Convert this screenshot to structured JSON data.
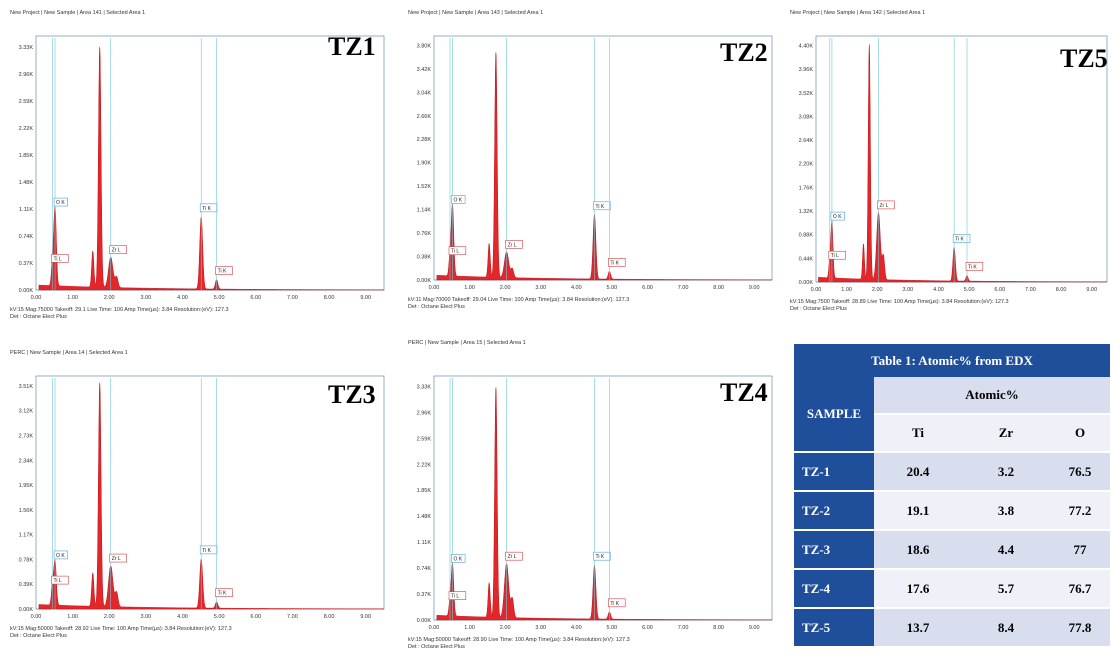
{
  "panels": [
    {
      "id": "TZ1",
      "label": "TZ1",
      "header": "New Project | New Sample | Area 141 | Selected Area 1",
      "footer1": "kV:15   Mag:75000   Takeoff: 29.1   Live Time: 100   Amp Time(µs): 3.84   Resolution:(eV): 127.3",
      "footer2": "Det : Octane Elect Plus",
      "yticks": [
        "0.00K",
        "0.37K",
        "0.74K",
        "1.11K",
        "1.48K",
        "1.85K",
        "2.22K",
        "2.59K",
        "2.96K",
        "3.33K"
      ],
      "xticks": [
        "0.00",
        "1.00",
        "2.00",
        "3.00",
        "4.00",
        "5.00",
        "6.00",
        "7.00",
        "8.00",
        "9.00"
      ],
      "peak_labels": [
        "O K",
        "Ti L",
        "Zr L",
        "Ti K",
        "Ti K"
      ]
    },
    {
      "id": "TZ2",
      "label": "TZ2",
      "header": "New Project | New Sample | Area 143 | Selected Area 1",
      "footer1": "kV:11   Mag:70000   Takeoff: 29.04   Live Time: 100   Amp Time(µs): 3.84   Resolution:(eV): 127.3",
      "footer2": "Det : Octane Elect Plus",
      "yticks": [
        "0.00K",
        "0.38K",
        "0.76K",
        "1.14K",
        "1.52K",
        "1.90K",
        "2.28K",
        "2.66K",
        "3.04K",
        "3.42K",
        "3.80K"
      ],
      "xticks": [
        "0.00",
        "1.00",
        "2.00",
        "3.00",
        "4.00",
        "5.00",
        "6.00",
        "7.00",
        "8.00",
        "9.00"
      ],
      "peak_labels": [
        "O K",
        "Ti L",
        "Zr L",
        "Ti K",
        "Ti K"
      ]
    },
    {
      "id": "TZ5",
      "label": "TZ5",
      "header": "New Project | New Sample | Area 142 | Selected Area 1",
      "footer1": "kV:15   Mag:7500   Takeoff: 28.89   Live Time: 100   Amp Time(µs): 3.84   Resolution:(eV): 127.3",
      "footer2": "Det : Octane Elect Plus",
      "yticks": [
        "0.00K",
        "0.44K",
        "0.88K",
        "1.32K",
        "1.76K",
        "2.20K",
        "2.64K",
        "3.08K",
        "3.52K",
        "3.96K",
        "4.40K"
      ],
      "xticks": [
        "0.00",
        "1.00",
        "2.00",
        "3.00",
        "4.00",
        "5.00",
        "6.00",
        "7.00",
        "8.00",
        "9.00"
      ],
      "peak_labels": [
        "O K",
        "Ti L",
        "Zr L",
        "Ti K",
        "Ti K"
      ]
    },
    {
      "id": "TZ3",
      "label": "TZ3",
      "header": "PERC | New Sample | Area 14 | Selected Area 1",
      "footer1": "kV:15   Mag:50000   Takeoff: 28.92   Live Time: 100   Amp Time(µs): 3.84   Resolution:(eV): 127.3",
      "footer2": "Det : Octane Elect Plus",
      "yticks": [
        "0.00K",
        "0.39K",
        "0.78K",
        "1.17K",
        "1.56K",
        "1.95K",
        "2.34K",
        "2.73K",
        "3.12K",
        "3.51K"
      ],
      "xticks": [
        "0.00",
        "1.00",
        "2.00",
        "3.00",
        "4.00",
        "5.00",
        "6.00",
        "7.00",
        "8.00",
        "9.00"
      ],
      "peak_labels": [
        "O K",
        "Ti L",
        "Zr L",
        "Ti K",
        "Ti K"
      ]
    },
    {
      "id": "TZ4",
      "label": "TZ4",
      "header": "PERC | New Sample | Area 15 | Selected Area 1",
      "footer1": "kV:15   Mag:50000   Takeoff: 28.90   Live Time: 100   Amp Time(µs): 3.84   Resolution:(eV): 127.3",
      "footer2": "Det : Octane Elect Plus",
      "yticks": [
        "0.00K",
        "0.37K",
        "0.74K",
        "1.11K",
        "1.48K",
        "1.85K",
        "2.22K",
        "2.59K",
        "2.96K",
        "3.33K"
      ],
      "xticks": [
        "0.00",
        "1.00",
        "2.00",
        "3.00",
        "4.00",
        "5.00",
        "6.00",
        "7.00",
        "8.00",
        "9.00"
      ],
      "peak_labels": [
        "O K",
        "Ti L",
        "Zr L",
        "Ti K",
        "Ti K"
      ]
    }
  ],
  "table": {
    "caption": "Table 1: Atomic% from EDX",
    "sample_header": "SAMPLE",
    "group_header": "Atomic%",
    "columns": [
      "Ti",
      "Zr",
      "O"
    ],
    "rows": [
      {
        "sample": "TZ-1",
        "Ti": "20.4",
        "Zr": "3.2",
        "O": "76.5"
      },
      {
        "sample": "TZ-2",
        "Ti": "19.1",
        "Zr": "3.8",
        "O": "77.2"
      },
      {
        "sample": "TZ-3",
        "Ti": "18.6",
        "Zr": "4.4",
        "O": "77"
      },
      {
        "sample": "TZ-4",
        "Ti": "17.6",
        "Zr": "5.7",
        "O": "76.7"
      },
      {
        "sample": "TZ-5",
        "Ti": "13.7",
        "Zr": "8.4",
        "O": "77.8"
      }
    ]
  },
  "chart_data": [
    {
      "type": "area",
      "title": "TZ1",
      "xlim": [
        0,
        9.5
      ],
      "ylim": [
        0,
        3.52
      ],
      "peaks": [
        {
          "label": "O K",
          "x": 0.52,
          "y": 1.08
        },
        {
          "label": "Ti L",
          "x": 0.45,
          "y": 0.3
        },
        {
          "label": "Zr L",
          "x": 2.04,
          "y": 0.42
        },
        {
          "label": "Ti K",
          "x": 4.51,
          "y": 1.0
        },
        {
          "label": "Ti K",
          "x": 4.93,
          "y": 0.13
        },
        {
          "label": "",
          "x": 1.74,
          "y": 3.33
        }
      ]
    },
    {
      "type": "area",
      "title": "TZ2",
      "xlim": [
        0,
        9.5
      ],
      "ylim": [
        0,
        3.8
      ],
      "peaks": [
        {
          "label": "O K",
          "x": 0.52,
          "y": 1.1
        },
        {
          "label": "Ti L",
          "x": 0.45,
          "y": 0.3
        },
        {
          "label": "Zr L",
          "x": 2.04,
          "y": 0.4
        },
        {
          "label": "Ti K",
          "x": 4.51,
          "y": 1.0
        },
        {
          "label": "Ti K",
          "x": 4.93,
          "y": 0.12
        },
        {
          "label": "",
          "x": 1.74,
          "y": 3.5
        }
      ]
    },
    {
      "type": "area",
      "title": "TZ5",
      "xlim": [
        0,
        9.5
      ],
      "ylim": [
        0,
        4.4
      ],
      "peaks": [
        {
          "label": "O K",
          "x": 0.52,
          "y": 1.0
        },
        {
          "label": "Ti L",
          "x": 0.45,
          "y": 0.3
        },
        {
          "label": "Zr L",
          "x": 2.04,
          "y": 1.2
        },
        {
          "label": "Ti K",
          "x": 4.51,
          "y": 0.6
        },
        {
          "label": "Ti K",
          "x": 4.93,
          "y": 0.1
        },
        {
          "label": "",
          "x": 1.74,
          "y": 4.2
        }
      ]
    },
    {
      "type": "area",
      "title": "TZ3",
      "xlim": [
        0,
        9.5
      ],
      "ylim": [
        0,
        3.7
      ],
      "peaks": [
        {
          "label": "O K",
          "x": 0.52,
          "y": 0.7
        },
        {
          "label": "Ti L",
          "x": 0.45,
          "y": 0.3
        },
        {
          "label": "Zr L",
          "x": 2.04,
          "y": 0.65
        },
        {
          "label": "Ti K",
          "x": 4.51,
          "y": 0.78
        },
        {
          "label": "Ti K",
          "x": 4.93,
          "y": 0.1
        },
        {
          "label": "",
          "x": 1.74,
          "y": 3.55
        }
      ]
    },
    {
      "type": "area",
      "title": "TZ4",
      "xlim": [
        0,
        9.5
      ],
      "ylim": [
        0,
        3.4
      ],
      "peaks": [
        {
          "label": "O K",
          "x": 0.52,
          "y": 0.72
        },
        {
          "label": "Ti L",
          "x": 0.45,
          "y": 0.2
        },
        {
          "label": "Zr L",
          "x": 2.04,
          "y": 0.75
        },
        {
          "label": "Ti K",
          "x": 4.51,
          "y": 0.75
        },
        {
          "label": "Ti K",
          "x": 4.93,
          "y": 0.1
        },
        {
          "label": "",
          "x": 1.74,
          "y": 3.2
        }
      ]
    }
  ]
}
